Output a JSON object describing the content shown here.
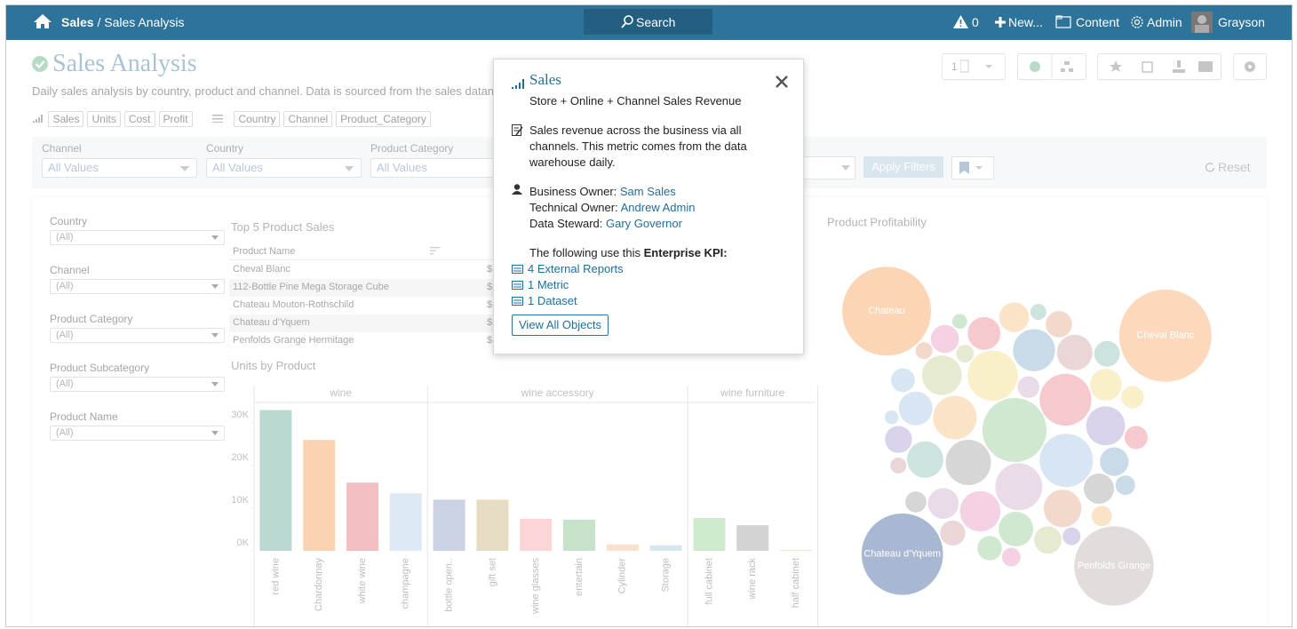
{
  "nav": {
    "root": "Sales",
    "separator": "/",
    "page": "Sales Analysis",
    "search": "Search",
    "alerts": 0,
    "new": "New...",
    "content": "Content",
    "admin": "Admin",
    "user": "Grayson"
  },
  "header": {
    "title": "Sales Analysis",
    "description": "Daily sales analysis by country, product and channel. Data is sourced from the sales datan",
    "measures": [
      "Sales",
      "Units",
      "Cost",
      "Profit"
    ],
    "dimensions": [
      "Country",
      "Channel",
      "Product_Category"
    ],
    "page_count": 1
  },
  "filters": {
    "items": [
      {
        "label": "Channel",
        "value": "All Values"
      },
      {
        "label": "Country",
        "value": "All Values"
      },
      {
        "label": "Product Category",
        "value": "All Values"
      }
    ],
    "apply": "Apply Filters",
    "reset": "Reset"
  },
  "sidebar": [
    {
      "label": "Country",
      "value": "(All)"
    },
    {
      "label": "Channel",
      "value": "(All)"
    },
    {
      "label": "Product Category",
      "value": "(All)"
    },
    {
      "label": "Product Subcategory",
      "value": "(All)"
    },
    {
      "label": "Product Name",
      "value": "(All)"
    }
  ],
  "top5": {
    "title": "Top 5 Product Sales",
    "column": "Product Name",
    "rows": [
      "Cheval Blanc",
      "112-Bottle Pine Mega Storage Cube",
      "Chateau Mouton-Rothschild",
      "Chateau d'Yquem",
      "Penfolds Grange Hermitage"
    ],
    "currency": "$"
  },
  "chart_data": [
    {
      "type": "bar",
      "title": "Units by Product",
      "panels": [
        {
          "name": "wine",
          "categories": [
            "red wine",
            "Chardonnay",
            "white wine",
            "champagne"
          ],
          "values": [
            33000,
            26000,
            16000,
            13500
          ],
          "colors": [
            "#b9d9d2",
            "#fbd3b0",
            "#f4bfc3",
            "#dde9f5"
          ]
        },
        {
          "name": "wine accessory",
          "categories": [
            "bottle open..",
            "gift set",
            "wine glasses",
            "entertain",
            "Cylinder",
            "Storage"
          ],
          "values": [
            12000,
            12000,
            7500,
            7300,
            1500,
            1300
          ],
          "colors": [
            "#c9d3e3",
            "#e6dcc3",
            "#fcd6d6",
            "#c6e2c9",
            "#fde0cc",
            "#d4e8ee"
          ]
        },
        {
          "name": "wine furniture",
          "categories": [
            "full cabinet",
            "wine rack",
            "half cabinet"
          ],
          "values": [
            7700,
            6000,
            200
          ],
          "colors": [
            "#cdeccd",
            "#d3d3d3",
            "#f2e6d9"
          ]
        }
      ],
      "ylim": [
        0,
        35000
      ],
      "yticks": [
        {
          "value": 0,
          "label": "0K"
        },
        {
          "value": 10000,
          "label": "10K"
        },
        {
          "value": 20000,
          "label": "20K"
        },
        {
          "value": 30000,
          "label": "30K"
        }
      ],
      "grid": false
    },
    {
      "type": "bubble",
      "title": "Product Profitability",
      "categories": [
        null,
        null,
        null,
        null,
        null,
        null,
        null,
        null,
        null,
        null,
        null,
        null,
        null,
        null,
        null,
        null,
        null,
        null,
        null,
        null,
        null,
        null,
        null,
        null,
        null,
        null,
        null,
        null,
        null,
        null,
        null,
        null,
        null,
        null,
        null,
        null,
        null,
        null,
        null,
        null,
        null,
        null,
        null,
        null,
        "Chateau",
        "Cheval Blanc",
        "Chateau d'Yquem",
        "Penfolds Grange"
      ],
      "values": [
        1300,
        900,
        850,
        800,
        700,
        650,
        600,
        560,
        520,
        500,
        480,
        450,
        420,
        400,
        380,
        360,
        340,
        320,
        300,
        290,
        280,
        260,
        250,
        240,
        230,
        220,
        210,
        200,
        190,
        180,
        170,
        160,
        150,
        140,
        130,
        120,
        110,
        100,
        100,
        90,
        80,
        80,
        70,
        60,
        2500,
        2700,
        2100,
        2000
      ],
      "colors": [
        "#cfe8cf",
        "#d7e6f2",
        "#f6c9cf",
        "#f9efc9",
        "#e9dce8",
        "#d6d6d6",
        "#fbe3c8",
        "#c9dbe8",
        "#f4d1e3",
        "#e6ead0",
        "#d8d2ea",
        "#f2d9cc",
        "#cde3e0",
        "#ead6d6",
        "#cfe8cf",
        "#d7e6f2",
        "#f6c9cf",
        "#f9efc9",
        "#e9dce8",
        "#d6d6d6",
        "#fbe3c8",
        "#c9dbe8",
        "#f4d1e3",
        "#e6ead0",
        "#d8d2ea",
        "#f2d9cc",
        "#cde3e0",
        "#ead6d6",
        "#cfe8cf",
        "#d7e6f2",
        "#f6c9cf",
        "#f9efc9",
        "#e9dce8",
        "#d6d6d6",
        "#fbe3c8",
        "#c9dbe8",
        "#f4d1e3",
        "#e6ead0",
        "#d8d2ea",
        "#f2d9cc",
        "#cde3e0",
        "#ead6d6",
        "#cfe8cf",
        "#d7e6f2",
        "#fcd5b5",
        "#fcd9bd",
        "#a9b8d2",
        "#e2dcdc"
      ]
    }
  ],
  "popup": {
    "title": "Sales",
    "subtitle": "Store + Online + Channel Sales Revenue",
    "description": "Sales revenue across the business via all channels. This metric comes from the data warehouse daily.",
    "owners": [
      {
        "role": "Business Owner:",
        "name": "Sam Sales"
      },
      {
        "role": "Technical Owner:",
        "name": "Andrew Admin"
      },
      {
        "role": "Data Steward:",
        "name": "Gary Governor"
      }
    ],
    "usage_intro": "The following use this",
    "usage_emphasis": "Enterprise KPI:",
    "usage": [
      "4 External Reports",
      "1 Metric",
      "1 Dataset"
    ],
    "button": "View All Objects"
  }
}
